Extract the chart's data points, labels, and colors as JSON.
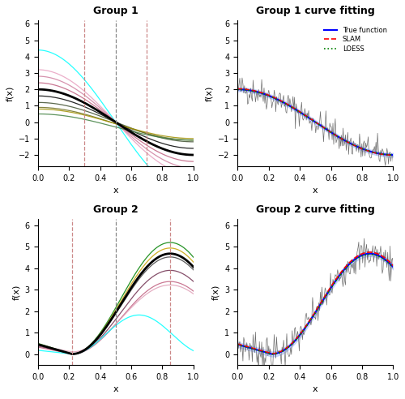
{
  "group1_title": "Group 1",
  "group1_fit_title": "Group 1 curve fitting",
  "group2_title": "Group 2",
  "group2_fit_title": "Group 2 curve fitting",
  "xlabel": "x",
  "ylabel": "f(x)",
  "group1_ylim": [
    -2.7,
    6.2
  ],
  "group2_ylim": [
    -0.5,
    6.3
  ],
  "group1_red_vlines": [
    0.3,
    0.7
  ],
  "group1_black_vline": 0.5,
  "group2_red_vlines": [
    0.22,
    0.85
  ],
  "group2_black_vline": 0.5,
  "bg_color": "#ffffff",
  "noise_seed_g1": 42,
  "noise_seed_g2": 7,
  "vline_red_color": "#cc8888",
  "vline_black_color": "#888888"
}
